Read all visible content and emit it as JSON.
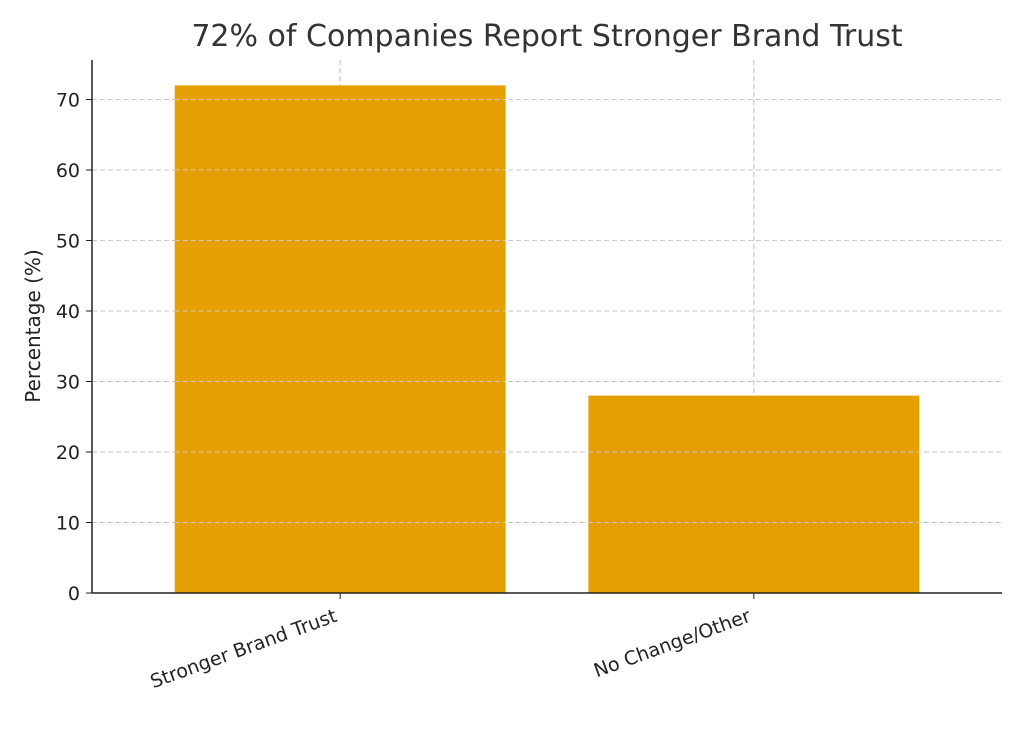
{
  "chart_data": {
    "type": "bar",
    "title": "72% of Companies Report Stronger Brand Trust",
    "xlabel": "",
    "ylabel": "Percentage (%)",
    "categories": [
      "Stronger Brand Trust",
      "No Change/Other"
    ],
    "values": [
      72,
      28
    ],
    "ylim": [
      0,
      75.6
    ],
    "yticks": [
      0,
      10,
      20,
      30,
      40,
      50,
      60,
      70
    ],
    "grid": true,
    "bar_color": "#E69F00"
  }
}
